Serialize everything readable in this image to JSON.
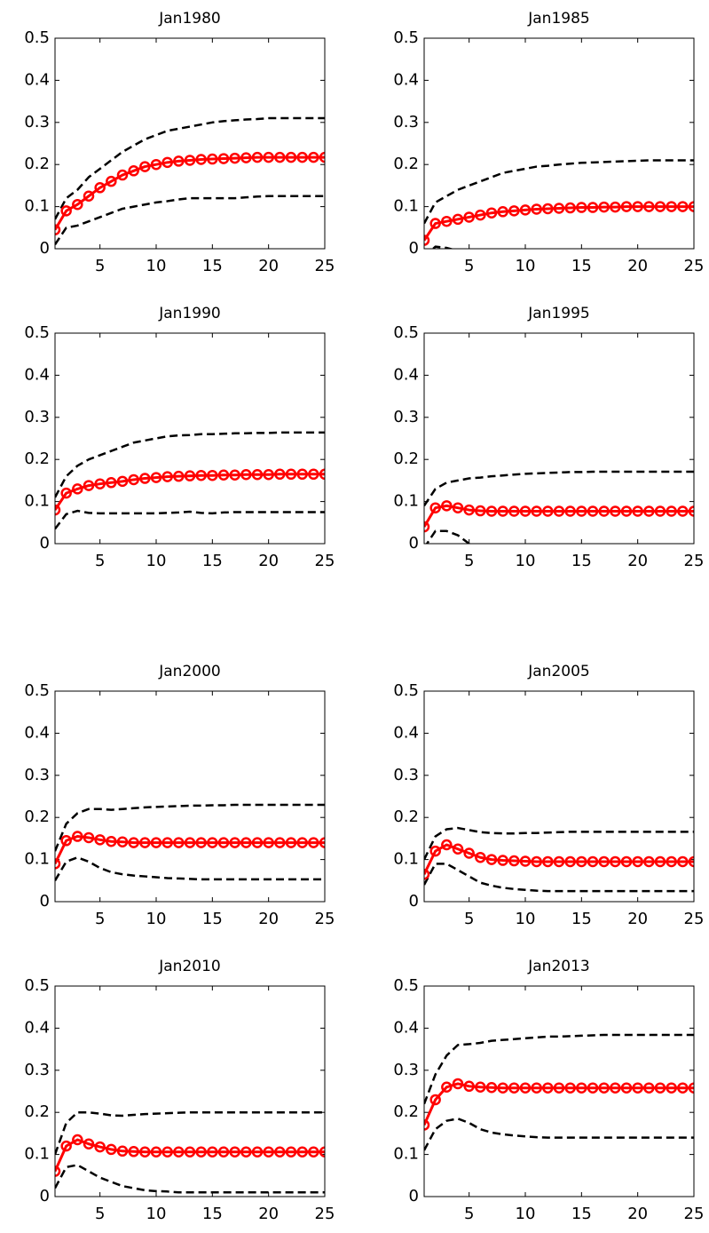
{
  "chart_data": [
    {
      "type": "line",
      "title": "Jan1980",
      "x": [
        1,
        2,
        3,
        4,
        5,
        6,
        7,
        8,
        9,
        10,
        11,
        12,
        13,
        14,
        15,
        16,
        17,
        18,
        19,
        20,
        21,
        22,
        23,
        24,
        25
      ],
      "xlim": [
        1,
        25
      ],
      "ylim": [
        0,
        0.5
      ],
      "xticks": [
        5,
        10,
        15,
        20,
        25
      ],
      "yticks": [
        0,
        0.1,
        0.2,
        0.3,
        0.4,
        0.5
      ],
      "series": [
        {
          "color": "#000000",
          "linestyle": "--",
          "values": [
            0.07,
            0.12,
            0.14,
            0.17,
            0.19,
            0.21,
            0.23,
            0.245,
            0.26,
            0.27,
            0.28,
            0.285,
            0.29,
            0.295,
            0.3,
            0.303,
            0.305,
            0.307,
            0.308,
            0.31,
            0.31,
            0.31,
            0.31,
            0.31,
            0.31
          ]
        },
        {
          "color": "#000000",
          "linestyle": "--",
          "values": [
            0.01,
            0.05,
            0.055,
            0.065,
            0.075,
            0.085,
            0.095,
            0.1,
            0.105,
            0.11,
            0.113,
            0.117,
            0.12,
            0.12,
            0.12,
            0.12,
            0.12,
            0.122,
            0.124,
            0.125,
            0.125,
            0.125,
            0.125,
            0.125,
            0.125
          ]
        },
        {
          "color": "#ff0000",
          "linestyle": "-",
          "marker": "o",
          "values": [
            0.045,
            0.09,
            0.105,
            0.125,
            0.145,
            0.16,
            0.175,
            0.185,
            0.195,
            0.2,
            0.205,
            0.208,
            0.21,
            0.212,
            0.213,
            0.214,
            0.215,
            0.216,
            0.217,
            0.217,
            0.217,
            0.217,
            0.217,
            0.217,
            0.217
          ]
        }
      ]
    },
    {
      "type": "line",
      "title": "Jan1985",
      "x": [
        1,
        2,
        3,
        4,
        5,
        6,
        7,
        8,
        9,
        10,
        11,
        12,
        13,
        14,
        15,
        16,
        17,
        18,
        19,
        20,
        21,
        22,
        23,
        24,
        25
      ],
      "xlim": [
        1,
        25
      ],
      "ylim": [
        0,
        0.5
      ],
      "xticks": [
        5,
        10,
        15,
        20,
        25
      ],
      "yticks": [
        0,
        0.1,
        0.2,
        0.3,
        0.4,
        0.5
      ],
      "series": [
        {
          "color": "#000000",
          "linestyle": "--",
          "values": [
            0.06,
            0.11,
            0.125,
            0.14,
            0.15,
            0.16,
            0.17,
            0.18,
            0.185,
            0.19,
            0.195,
            0.197,
            0.2,
            0.202,
            0.204,
            0.205,
            0.206,
            0.207,
            0.208,
            0.209,
            0.21,
            0.21,
            0.21,
            0.21,
            0.21
          ]
        },
        {
          "color": "#000000",
          "linestyle": "--",
          "values": [
            -0.02,
            0.005,
            0.002,
            -0.005,
            -0.01,
            -0.015,
            -0.02,
            -0.025,
            -0.03,
            -0.03,
            -0.03,
            -0.03,
            -0.03,
            -0.03,
            -0.03,
            -0.03,
            -0.03,
            -0.03,
            -0.03,
            -0.03,
            -0.03,
            -0.03,
            -0.03,
            -0.03,
            -0.03
          ]
        },
        {
          "color": "#ff0000",
          "linestyle": "-",
          "marker": "o",
          "values": [
            0.02,
            0.06,
            0.065,
            0.07,
            0.075,
            0.08,
            0.085,
            0.088,
            0.09,
            0.092,
            0.094,
            0.095,
            0.096,
            0.097,
            0.098,
            0.098,
            0.099,
            0.099,
            0.1,
            0.1,
            0.1,
            0.1,
            0.1,
            0.1,
            0.1
          ]
        }
      ]
    },
    {
      "type": "line",
      "title": "Jan1990",
      "x": [
        1,
        2,
        3,
        4,
        5,
        6,
        7,
        8,
        9,
        10,
        11,
        12,
        13,
        14,
        15,
        16,
        17,
        18,
        19,
        20,
        21,
        22,
        23,
        24,
        25
      ],
      "xlim": [
        1,
        25
      ],
      "ylim": [
        0,
        0.5
      ],
      "xticks": [
        5,
        10,
        15,
        20,
        25
      ],
      "yticks": [
        0,
        0.1,
        0.2,
        0.3,
        0.4,
        0.5
      ],
      "series": [
        {
          "color": "#000000",
          "linestyle": "--",
          "values": [
            0.11,
            0.16,
            0.185,
            0.2,
            0.21,
            0.22,
            0.23,
            0.24,
            0.245,
            0.25,
            0.255,
            0.257,
            0.258,
            0.26,
            0.26,
            0.261,
            0.262,
            0.262,
            0.263,
            0.263,
            0.264,
            0.264,
            0.264,
            0.264,
            0.264
          ]
        },
        {
          "color": "#000000",
          "linestyle": "--",
          "values": [
            0.035,
            0.07,
            0.078,
            0.073,
            0.072,
            0.072,
            0.072,
            0.072,
            0.072,
            0.072,
            0.073,
            0.074,
            0.076,
            0.073,
            0.072,
            0.074,
            0.075,
            0.075,
            0.075,
            0.075,
            0.075,
            0.075,
            0.075,
            0.075,
            0.075
          ]
        },
        {
          "color": "#ff0000",
          "linestyle": "-",
          "marker": "o",
          "values": [
            0.08,
            0.12,
            0.13,
            0.138,
            0.142,
            0.145,
            0.148,
            0.152,
            0.155,
            0.157,
            0.159,
            0.16,
            0.161,
            0.162,
            0.162,
            0.163,
            0.163,
            0.164,
            0.164,
            0.164,
            0.165,
            0.165,
            0.165,
            0.165,
            0.165
          ]
        }
      ]
    },
    {
      "type": "line",
      "title": "Jan1995",
      "x": [
        1,
        2,
        3,
        4,
        5,
        6,
        7,
        8,
        9,
        10,
        11,
        12,
        13,
        14,
        15,
        16,
        17,
        18,
        19,
        20,
        21,
        22,
        23,
        24,
        25
      ],
      "xlim": [
        1,
        25
      ],
      "ylim": [
        0,
        0.5
      ],
      "xticks": [
        5,
        10,
        15,
        20,
        25
      ],
      "yticks": [
        0,
        0.1,
        0.2,
        0.3,
        0.4,
        0.5
      ],
      "series": [
        {
          "color": "#000000",
          "linestyle": "--",
          "values": [
            0.09,
            0.13,
            0.145,
            0.15,
            0.155,
            0.157,
            0.16,
            0.162,
            0.164,
            0.166,
            0.167,
            0.168,
            0.169,
            0.17,
            0.17,
            0.171,
            0.171,
            0.171,
            0.171,
            0.171,
            0.171,
            0.171,
            0.171,
            0.171,
            0.171
          ]
        },
        {
          "color": "#000000",
          "linestyle": "--",
          "values": [
            -0.01,
            0.03,
            0.03,
            0.02,
            0,
            -0.01,
            -0.02,
            -0.03,
            -0.03,
            -0.03,
            -0.03,
            -0.03,
            -0.03,
            -0.03,
            -0.03,
            -0.03,
            -0.03,
            -0.03,
            -0.03,
            -0.03,
            -0.03,
            -0.03,
            -0.03,
            -0.03,
            -0.03
          ]
        },
        {
          "color": "#ff0000",
          "linestyle": "-",
          "marker": "o",
          "values": [
            0.04,
            0.085,
            0.09,
            0.085,
            0.08,
            0.078,
            0.077,
            0.077,
            0.077,
            0.077,
            0.077,
            0.077,
            0.077,
            0.077,
            0.077,
            0.077,
            0.077,
            0.077,
            0.077,
            0.077,
            0.077,
            0.077,
            0.077,
            0.077,
            0.077
          ]
        }
      ]
    },
    {
      "type": "line",
      "title": "Jan2000",
      "x": [
        1,
        2,
        3,
        4,
        5,
        6,
        7,
        8,
        9,
        10,
        11,
        12,
        13,
        14,
        15,
        16,
        17,
        18,
        19,
        20,
        21,
        22,
        23,
        24,
        25
      ],
      "xlim": [
        1,
        25
      ],
      "ylim": [
        0,
        0.5
      ],
      "xticks": [
        5,
        10,
        15,
        20,
        25
      ],
      "yticks": [
        0,
        0.1,
        0.2,
        0.3,
        0.4,
        0.5
      ],
      "series": [
        {
          "color": "#000000",
          "linestyle": "--",
          "values": [
            0.12,
            0.185,
            0.21,
            0.22,
            0.22,
            0.218,
            0.22,
            0.222,
            0.224,
            0.225,
            0.226,
            0.227,
            0.228,
            0.228,
            0.229,
            0.229,
            0.23,
            0.23,
            0.23,
            0.23,
            0.23,
            0.23,
            0.23,
            0.23,
            0.23
          ]
        },
        {
          "color": "#000000",
          "linestyle": "--",
          "values": [
            0.05,
            0.095,
            0.105,
            0.095,
            0.08,
            0.07,
            0.065,
            0.062,
            0.06,
            0.058,
            0.056,
            0.055,
            0.054,
            0.053,
            0.053,
            0.053,
            0.053,
            0.053,
            0.053,
            0.053,
            0.053,
            0.053,
            0.053,
            0.053,
            0.053
          ]
        },
        {
          "color": "#ff0000",
          "linestyle": "-",
          "marker": "o",
          "values": [
            0.09,
            0.145,
            0.155,
            0.152,
            0.147,
            0.143,
            0.142,
            0.14,
            0.14,
            0.14,
            0.14,
            0.14,
            0.14,
            0.14,
            0.14,
            0.14,
            0.14,
            0.14,
            0.14,
            0.14,
            0.14,
            0.14,
            0.14,
            0.14,
            0.14
          ]
        }
      ]
    },
    {
      "type": "line",
      "title": "Jan2005",
      "x": [
        1,
        2,
        3,
        4,
        5,
        6,
        7,
        8,
        9,
        10,
        11,
        12,
        13,
        14,
        15,
        16,
        17,
        18,
        19,
        20,
        21,
        22,
        23,
        24,
        25
      ],
      "xlim": [
        1,
        25
      ],
      "ylim": [
        0,
        0.5
      ],
      "xticks": [
        5,
        10,
        15,
        20,
        25
      ],
      "yticks": [
        0,
        0.1,
        0.2,
        0.3,
        0.4,
        0.5
      ],
      "series": [
        {
          "color": "#000000",
          "linestyle": "--",
          "values": [
            0.1,
            0.155,
            0.172,
            0.175,
            0.17,
            0.165,
            0.163,
            0.162,
            0.162,
            0.163,
            0.163,
            0.164,
            0.165,
            0.166,
            0.166,
            0.166,
            0.166,
            0.166,
            0.166,
            0.166,
            0.166,
            0.166,
            0.166,
            0.166,
            0.166
          ]
        },
        {
          "color": "#000000",
          "linestyle": "--",
          "values": [
            0.04,
            0.09,
            0.09,
            0.075,
            0.06,
            0.045,
            0.038,
            0.033,
            0.03,
            0.028,
            0.026,
            0.025,
            0.025,
            0.025,
            0.025,
            0.025,
            0.025,
            0.025,
            0.025,
            0.025,
            0.025,
            0.025,
            0.025,
            0.025,
            0.025
          ]
        },
        {
          "color": "#ff0000",
          "linestyle": "-",
          "marker": "o",
          "values": [
            0.065,
            0.12,
            0.135,
            0.125,
            0.115,
            0.105,
            0.1,
            0.098,
            0.097,
            0.096,
            0.095,
            0.095,
            0.095,
            0.095,
            0.095,
            0.095,
            0.095,
            0.095,
            0.095,
            0.095,
            0.095,
            0.095,
            0.095,
            0.095,
            0.095
          ]
        }
      ]
    },
    {
      "type": "line",
      "title": "Jan2010",
      "x": [
        1,
        2,
        3,
        4,
        5,
        6,
        7,
        8,
        9,
        10,
        11,
        12,
        13,
        14,
        15,
        16,
        17,
        18,
        19,
        20,
        21,
        22,
        23,
        24,
        25
      ],
      "xlim": [
        1,
        25
      ],
      "ylim": [
        0,
        0.5
      ],
      "xticks": [
        5,
        10,
        15,
        20,
        25
      ],
      "yticks": [
        0,
        0.1,
        0.2,
        0.3,
        0.4,
        0.5
      ],
      "series": [
        {
          "color": "#000000",
          "linestyle": "--",
          "values": [
            0.1,
            0.175,
            0.2,
            0.2,
            0.197,
            0.193,
            0.192,
            0.194,
            0.196,
            0.197,
            0.198,
            0.199,
            0.2,
            0.2,
            0.2,
            0.2,
            0.2,
            0.2,
            0.2,
            0.2,
            0.2,
            0.2,
            0.2,
            0.2,
            0.2
          ]
        },
        {
          "color": "#000000",
          "linestyle": "--",
          "values": [
            0.02,
            0.07,
            0.075,
            0.06,
            0.045,
            0.035,
            0.025,
            0.02,
            0.015,
            0.013,
            0.012,
            0.01,
            0.01,
            0.01,
            0.01,
            0.01,
            0.01,
            0.01,
            0.01,
            0.01,
            0.01,
            0.01,
            0.01,
            0.01,
            0.01
          ]
        },
        {
          "color": "#ff0000",
          "linestyle": "-",
          "marker": "o",
          "values": [
            0.06,
            0.12,
            0.135,
            0.125,
            0.118,
            0.112,
            0.108,
            0.107,
            0.106,
            0.106,
            0.106,
            0.106,
            0.106,
            0.106,
            0.106,
            0.106,
            0.106,
            0.106,
            0.106,
            0.106,
            0.106,
            0.106,
            0.106,
            0.106,
            0.106
          ]
        }
      ]
    },
    {
      "type": "line",
      "title": "Jan2013",
      "x": [
        1,
        2,
        3,
        4,
        5,
        6,
        7,
        8,
        9,
        10,
        11,
        12,
        13,
        14,
        15,
        16,
        17,
        18,
        19,
        20,
        21,
        22,
        23,
        24,
        25
      ],
      "xlim": [
        1,
        25
      ],
      "ylim": [
        0,
        0.5
      ],
      "xticks": [
        5,
        10,
        15,
        20,
        25
      ],
      "yticks": [
        0,
        0.1,
        0.2,
        0.3,
        0.4,
        0.5
      ],
      "series": [
        {
          "color": "#000000",
          "linestyle": "--",
          "values": [
            0.22,
            0.29,
            0.335,
            0.36,
            0.362,
            0.365,
            0.37,
            0.372,
            0.374,
            0.376,
            0.378,
            0.38,
            0.38,
            0.381,
            0.382,
            0.383,
            0.384,
            0.384,
            0.384,
            0.384,
            0.384,
            0.384,
            0.384,
            0.384,
            0.384
          ]
        },
        {
          "color": "#000000",
          "linestyle": "--",
          "values": [
            0.11,
            0.16,
            0.18,
            0.185,
            0.175,
            0.16,
            0.152,
            0.148,
            0.145,
            0.143,
            0.141,
            0.14,
            0.14,
            0.14,
            0.14,
            0.14,
            0.14,
            0.14,
            0.14,
            0.14,
            0.14,
            0.14,
            0.14,
            0.14,
            0.14
          ]
        },
        {
          "color": "#ff0000",
          "linestyle": "-",
          "marker": "o",
          "values": [
            0.17,
            0.23,
            0.26,
            0.268,
            0.262,
            0.26,
            0.259,
            0.258,
            0.258,
            0.258,
            0.258,
            0.258,
            0.258,
            0.258,
            0.258,
            0.258,
            0.258,
            0.258,
            0.258,
            0.258,
            0.258,
            0.258,
            0.258,
            0.258,
            0.258
          ]
        }
      ]
    }
  ]
}
